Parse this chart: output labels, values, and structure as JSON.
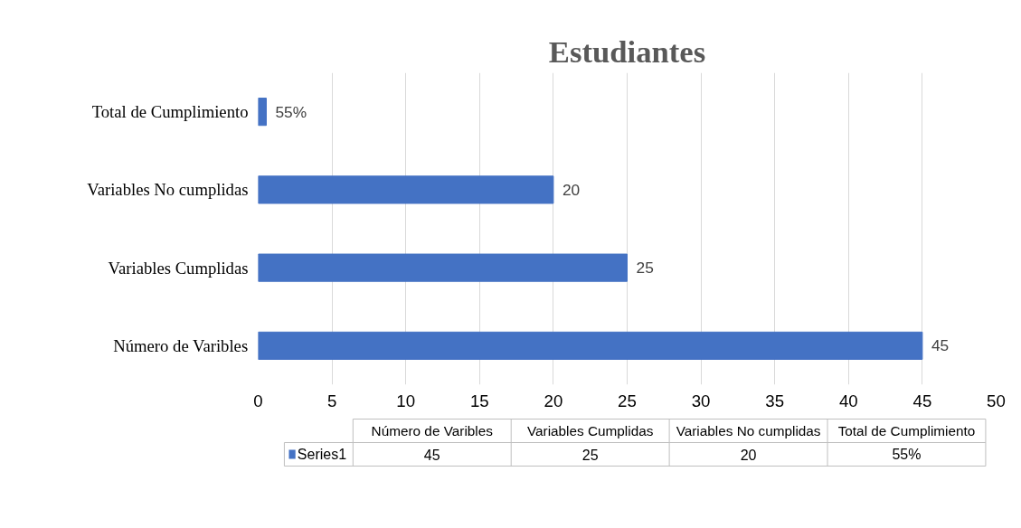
{
  "chart_data": {
    "type": "bar",
    "orientation": "horizontal",
    "title": "Estudiantes",
    "categories": [
      "Total de Cumplimiento",
      "Variables No cumplidas",
      "Variables Cumplidas",
      "Número de Varibles"
    ],
    "series": [
      {
        "name": "Series1",
        "color": "#4472c4",
        "values": [
          0.55,
          20,
          25,
          45
        ],
        "value_labels": [
          "55%",
          "20",
          "25",
          "45"
        ]
      }
    ],
    "xlim": [
      0,
      50
    ],
    "xticks": [
      0,
      5,
      10,
      15,
      20,
      25,
      30,
      35,
      40,
      45,
      50
    ],
    "grid": "x",
    "legend": "bottom"
  }
}
